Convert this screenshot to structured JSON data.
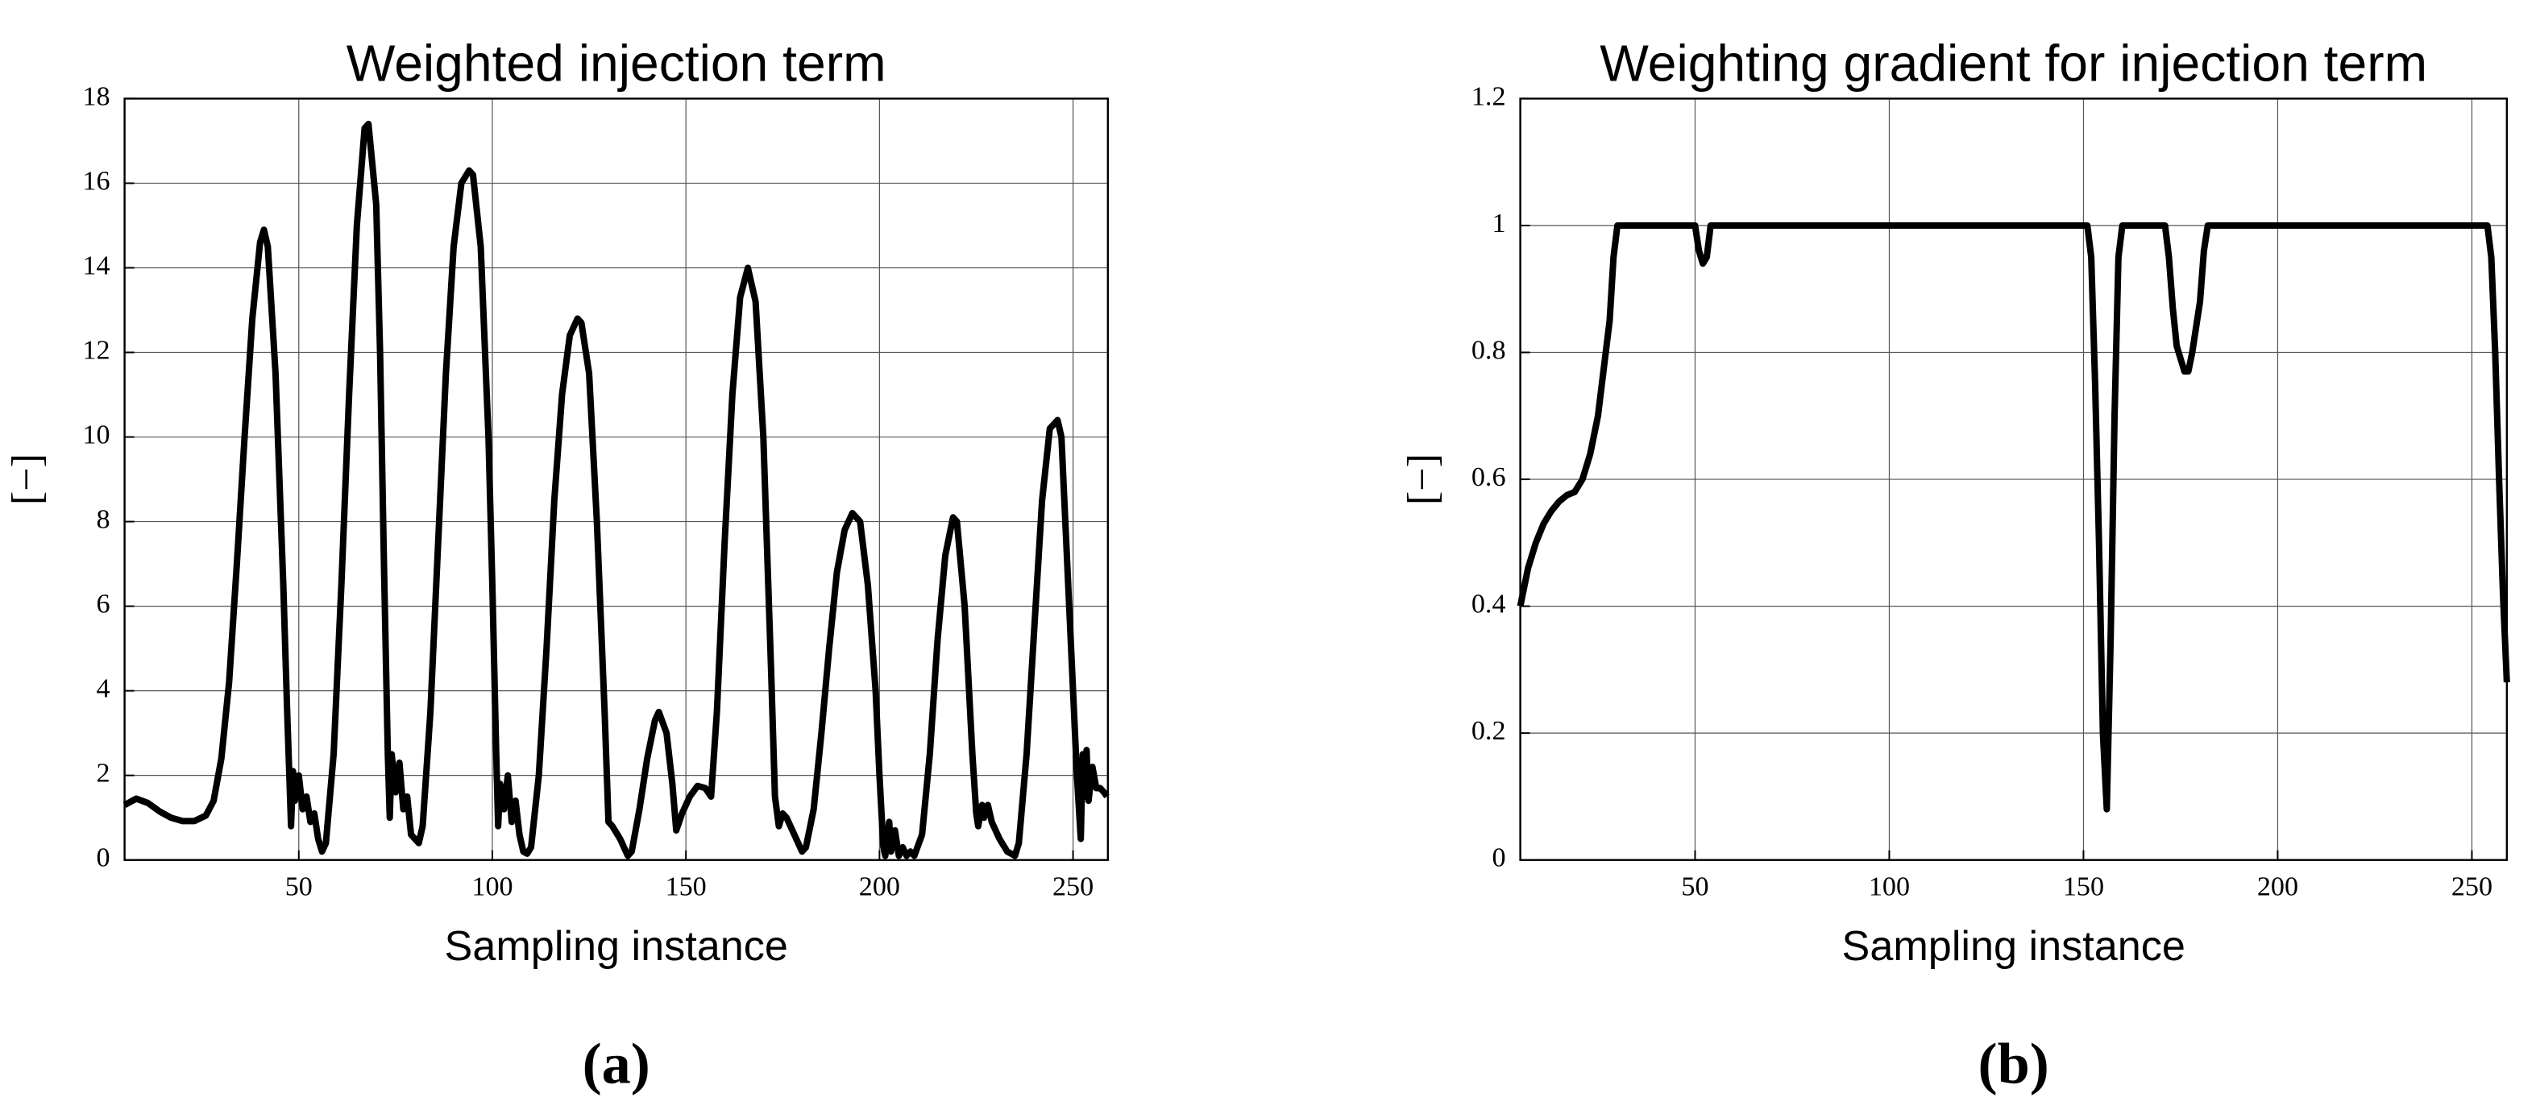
{
  "chart_data": [
    {
      "type": "line",
      "title": "Weighted injection term",
      "xlabel": "Sampling instance",
      "ylabel": "[−]",
      "panel_label": "(a)",
      "xlim": [
        5,
        259
      ],
      "xticks": [
        50,
        100,
        150,
        200,
        250
      ],
      "ylim": [
        0,
        18
      ],
      "yticks": [
        0,
        2,
        4,
        6,
        8,
        10,
        12,
        14,
        16,
        18
      ],
      "grid": true,
      "color": "#000000",
      "x": [
        5,
        8,
        11,
        14,
        17,
        20,
        23,
        26,
        28,
        30,
        32,
        34,
        36,
        38,
        40,
        41,
        42,
        44,
        46,
        47,
        48,
        48.5,
        49,
        50,
        51,
        52,
        53,
        54,
        55,
        56,
        57,
        59,
        61,
        63,
        65,
        67,
        68,
        70,
        71,
        72,
        73,
        73.5,
        74,
        75,
        76,
        77,
        78,
        79,
        80,
        81,
        82,
        84,
        86,
        88,
        90,
        92,
        94,
        95,
        97,
        99,
        100,
        101,
        101.5,
        102,
        103,
        104,
        105,
        106,
        107,
        108,
        109,
        110,
        112,
        114,
        116,
        118,
        120,
        122,
        123,
        125,
        127,
        129,
        130,
        131,
        133,
        135,
        136,
        138,
        140,
        142,
        143,
        145,
        146.5,
        147.5,
        149,
        151,
        153,
        155,
        156.5,
        158,
        160,
        162,
        164,
        166,
        168,
        170,
        172,
        173,
        174,
        175,
        176,
        178,
        180,
        181,
        183,
        185,
        187,
        189,
        191,
        193,
        195,
        197,
        199,
        200,
        201,
        201.5,
        202.5,
        203,
        204,
        205,
        206,
        207,
        208,
        209,
        211,
        213,
        215,
        217,
        219,
        220,
        222,
        224,
        225,
        225.5,
        226.5,
        227,
        228,
        229,
        230,
        231,
        233,
        235,
        236,
        238,
        240,
        242,
        244,
        246,
        247,
        248,
        250,
        251,
        252,
        252.5,
        253,
        253.5,
        254,
        255,
        256,
        257,
        258,
        258.75
      ],
      "values": [
        1.3,
        1.45,
        1.35,
        1.15,
        1.0,
        0.92,
        0.92,
        1.05,
        1.4,
        2.4,
        4.2,
        7,
        10,
        12.8,
        14.6,
        14.9,
        14.5,
        11.5,
        6.5,
        3.5,
        0.8,
        2.1,
        1.4,
        2.0,
        1.2,
        1.5,
        0.9,
        1.1,
        0.5,
        0.2,
        0.4,
        2.5,
        6.5,
        11,
        15,
        17.3,
        17.4,
        15.5,
        12,
        7,
        2.5,
        1.0,
        2.5,
        1.6,
        2.3,
        1.2,
        1.5,
        0.6,
        0.5,
        0.4,
        0.8,
        3.5,
        7.5,
        11.5,
        14.5,
        16,
        16.3,
        16.2,
        14.5,
        10,
        6.5,
        2.5,
        0.8,
        1.8,
        1.2,
        2.0,
        0.9,
        1.4,
        0.6,
        0.2,
        0.15,
        0.3,
        2,
        5,
        8.5,
        11,
        12.4,
        12.8,
        12.7,
        11.5,
        8,
        3.5,
        0.9,
        0.8,
        0.5,
        0.1,
        0.2,
        1.2,
        2.4,
        3.3,
        3.5,
        3.0,
        1.8,
        0.7,
        1.1,
        1.5,
        1.75,
        1.7,
        1.5,
        3.5,
        7.5,
        11,
        13.3,
        14,
        13.2,
        10,
        4.5,
        1.5,
        0.8,
        1.1,
        1,
        0.6,
        0.2,
        0.3,
        1.2,
        3,
        5,
        6.8,
        7.8,
        8.2,
        8,
        6.5,
        4,
        2,
        0.3,
        0.1,
        0.9,
        0.2,
        0.7,
        0.1,
        0.3,
        0.1,
        0.2,
        0.1,
        0.6,
        2.5,
        5.2,
        7.2,
        8.1,
        8,
        6,
        2.5,
        1.1,
        0.8,
        1.3,
        1.0,
        1.3,
        0.9,
        0.7,
        0.5,
        0.2,
        0.1,
        0.4,
        2.5,
        5.5,
        8.5,
        10.2,
        10.4,
        10,
        8,
        4,
        2,
        0.5,
        2.5,
        1.5,
        2.6,
        1.4,
        2.2,
        1.7,
        1.7,
        1.6,
        1.5
      ]
    },
    {
      "type": "line",
      "title": "Weighting gradient for injection term",
      "xlabel": "Sampling instance",
      "ylabel": "[−]",
      "panel_label": "(b)",
      "xlim": [
        5,
        259
      ],
      "xticks": [
        50,
        100,
        150,
        200,
        250
      ],
      "ylim": [
        0,
        1.2
      ],
      "yticks": [
        0,
        0.2,
        0.4,
        0.6,
        0.8,
        1,
        1.2
      ],
      "grid": true,
      "color": "#000000",
      "x": [
        5,
        7,
        9,
        11,
        13,
        15,
        17,
        19,
        21,
        23,
        25,
        27,
        28,
        29,
        30,
        50,
        51,
        52,
        53,
        54,
        151,
        152,
        153,
        154,
        155,
        156,
        157,
        158,
        159,
        160,
        171,
        172,
        173,
        174,
        176,
        177,
        178,
        180,
        181,
        182,
        254,
        255,
        256,
        257,
        258,
        259
      ],
      "values": [
        0.4,
        0.46,
        0.5,
        0.53,
        0.55,
        0.565,
        0.575,
        0.58,
        0.6,
        0.64,
        0.7,
        0.8,
        0.85,
        0.95,
        1.0,
        1.0,
        0.96,
        0.94,
        0.95,
        1.0,
        1.0,
        0.95,
        0.75,
        0.5,
        0.2,
        0.08,
        0.35,
        0.7,
        0.95,
        1.0,
        1.0,
        0.95,
        0.87,
        0.81,
        0.77,
        0.77,
        0.8,
        0.88,
        0.96,
        1.0,
        1.0,
        0.95,
        0.8,
        0.6,
        0.42,
        0.28
      ]
    }
  ]
}
